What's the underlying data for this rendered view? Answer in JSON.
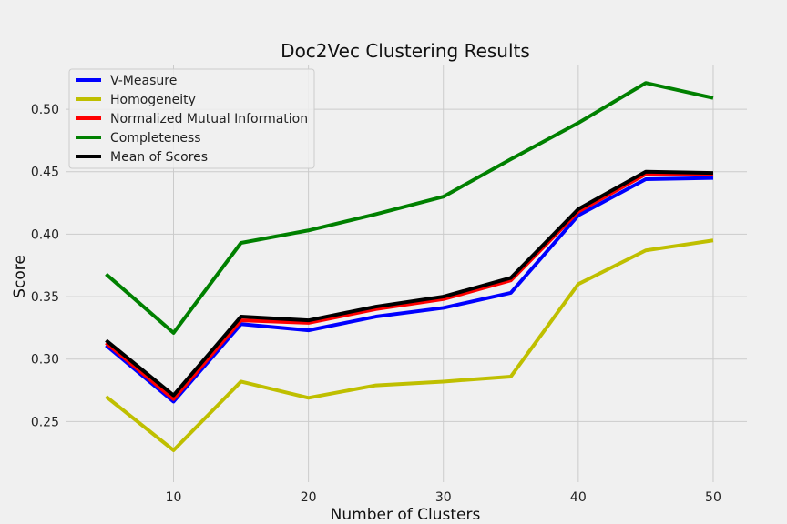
{
  "chart_data": {
    "type": "line",
    "title": "Doc2Vec Clustering Results",
    "xlabel": "Number of Clusters",
    "ylabel": "Score",
    "x": [
      5,
      10,
      15,
      20,
      25,
      30,
      35,
      40,
      45,
      50
    ],
    "xlim": [
      2,
      52.5
    ],
    "ylim": [
      0.2015,
      0.535
    ],
    "xticks": [
      10,
      20,
      30,
      40,
      50
    ],
    "yticks": [
      0.25,
      0.3,
      0.35,
      0.4,
      0.45,
      0.5
    ],
    "ytick_labels": [
      "0.25",
      "0.30",
      "0.35",
      "0.40",
      "0.45",
      "0.50"
    ],
    "grid": true,
    "legend_position": "top-left",
    "series": [
      {
        "name": "V-Measure",
        "color": "#0000ff",
        "values": [
          0.311,
          0.266,
          0.328,
          0.323,
          0.334,
          0.341,
          0.353,
          0.415,
          0.444,
          0.445
        ]
      },
      {
        "name": "Homogeneity",
        "color": "#bfbf00",
        "values": [
          0.27,
          0.227,
          0.282,
          0.269,
          0.279,
          0.282,
          0.286,
          0.36,
          0.387,
          0.395
        ]
      },
      {
        "name": "Normalized Mutual Information",
        "color": "#ff0000",
        "values": [
          0.313,
          0.268,
          0.331,
          0.329,
          0.34,
          0.348,
          0.363,
          0.418,
          0.448,
          0.448
        ]
      },
      {
        "name": "Completeness",
        "color": "#008000",
        "values": [
          0.368,
          0.321,
          0.393,
          0.403,
          0.416,
          0.43,
          0.46,
          0.489,
          0.521,
          0.509
        ]
      },
      {
        "name": "Mean of Scores",
        "color": "#000000",
        "values": [
          0.315,
          0.271,
          0.334,
          0.331,
          0.342,
          0.35,
          0.365,
          0.42,
          0.45,
          0.449
        ]
      }
    ]
  }
}
